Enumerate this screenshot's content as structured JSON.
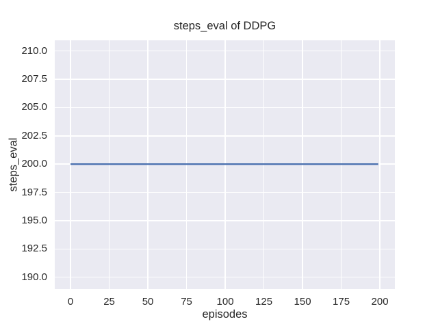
{
  "figure": {
    "background": "#FFFFFF"
  },
  "chart_data": {
    "type": "line",
    "title": "steps_eval of DDPG",
    "xlabel": "episodes",
    "ylabel": "steps_eval",
    "x_ticks": [
      0,
      25,
      50,
      75,
      100,
      125,
      150,
      175,
      200
    ],
    "x_tick_labels": [
      "0",
      "25",
      "50",
      "75",
      "100",
      "125",
      "150",
      "175",
      "200"
    ],
    "y_ticks": [
      190.0,
      192.5,
      195.0,
      197.5,
      200.0,
      202.5,
      205.0,
      207.5,
      210.0
    ],
    "y_tick_labels": [
      "190.0",
      "192.5",
      "195.0",
      "197.5",
      "200.0",
      "202.5",
      "205.0",
      "207.5",
      "210.0"
    ],
    "xlim": [
      -10.2,
      209.7
    ],
    "ylim": [
      188.95,
      210.95
    ],
    "grid": true,
    "legend_position": "none",
    "style": {
      "plot_background": "#EAEAF2",
      "grid_color": "#FFFFFF",
      "text_color": "#262626",
      "line_width": 2.3
    },
    "series": [
      {
        "name": "steps_eval",
        "color": "#4C72B0",
        "x": [
          0,
          199
        ],
        "y": [
          200,
          200
        ]
      }
    ]
  }
}
